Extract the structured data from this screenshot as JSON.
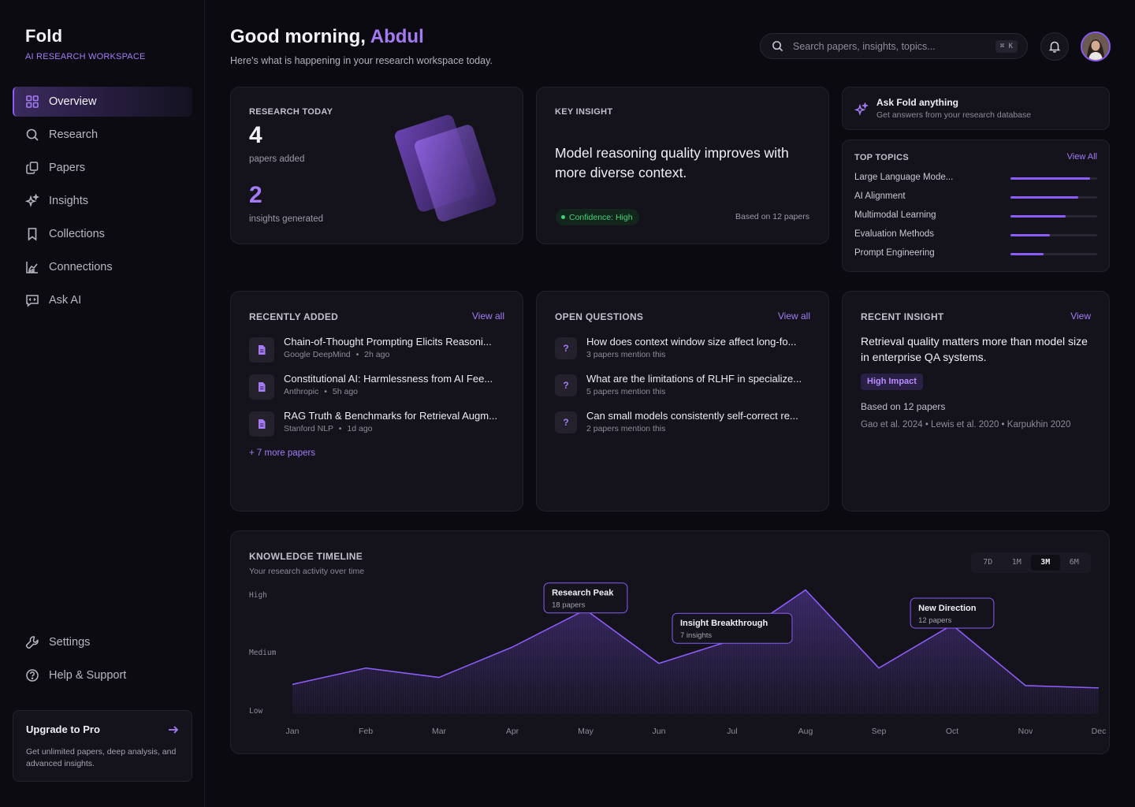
{
  "brand": {
    "name": "Fold",
    "subtitle": "AI RESEARCH WORKSPACE"
  },
  "nav": {
    "items": [
      {
        "label": "Overview",
        "icon": "grid-icon",
        "active": true
      },
      {
        "label": "Research",
        "icon": "search-icon"
      },
      {
        "label": "Papers",
        "icon": "papers-icon"
      },
      {
        "label": "Insights",
        "icon": "sparkle-icon"
      },
      {
        "label": "Collections",
        "icon": "bookmark-icon"
      },
      {
        "label": "Connections",
        "icon": "chart-icon"
      },
      {
        "label": "Ask AI",
        "icon": "chat-icon"
      }
    ],
    "bottom": [
      {
        "label": "Settings",
        "icon": "wrench-icon"
      },
      {
        "label": "Help & Support",
        "icon": "help-icon"
      }
    ]
  },
  "upgrade": {
    "title": "Upgrade to Pro",
    "text": "Get unlimited papers, deep analysis, and advanced insights."
  },
  "header": {
    "greeting": "Good morning,",
    "name": "Abdul",
    "subtitle": "Here's what is happening in your research workspace today.",
    "search_placeholder": "Search papers, insights, topics...",
    "shortcut": "⌘ K"
  },
  "research_today": {
    "label": "RESEARCH TODAY",
    "papers_count": "4",
    "papers_label": "papers added",
    "insights_count": "2",
    "insights_label": "insights generated"
  },
  "key_insight": {
    "label": "KEY INSIGHT",
    "text": "Model reasoning quality improves with more diverse context.",
    "confidence": "Confidence: High",
    "based_on": "Based on 12 papers"
  },
  "ask": {
    "title": "Ask Fold anything",
    "subtitle": "Get answers from your research database"
  },
  "top_topics": {
    "label": "TOP TOPICS",
    "view": "View All",
    "items": [
      {
        "name": "Large Language Mode...",
        "level": 0.92
      },
      {
        "name": "AI Alignment",
        "level": 0.78
      },
      {
        "name": "Multimodal Learning",
        "level": 0.64
      },
      {
        "name": "Evaluation Methods",
        "level": 0.45
      },
      {
        "name": "Prompt Engineering",
        "level": 0.38
      }
    ]
  },
  "recently_added": {
    "label": "RECENTLY ADDED",
    "view": "View all",
    "items": [
      {
        "title": "Chain-of-Thought Prompting Elicits Reasoni...",
        "source": "Google DeepMind",
        "time": "2h ago"
      },
      {
        "title": "Constitutional AI: Harmlessness from AI Fee...",
        "source": "Anthropic",
        "time": "5h ago"
      },
      {
        "title": "RAG Truth & Benchmarks for Retrieval Augm...",
        "source": "Stanford NLP",
        "time": "1d ago"
      }
    ],
    "more": "+ 7 more papers"
  },
  "open_questions": {
    "label": "OPEN QUESTIONS",
    "view": "View all",
    "items": [
      {
        "title": "How does context window size affect long-fo...",
        "sub": "3 papers mention this"
      },
      {
        "title": "What are the limitations of RLHF in specialize...",
        "sub": "5 papers mention this"
      },
      {
        "title": "Can small models consistently self-correct re...",
        "sub": "2 papers mention this"
      }
    ]
  },
  "recent_insight": {
    "label": "RECENT INSIGHT",
    "view": "View",
    "text": "Retrieval quality matters more than model size in enterprise QA systems.",
    "badge": "High Impact",
    "based_on": "Based on 12 papers",
    "citations": "Gao et al. 2024 • Lewis et al. 2020 • Karpukhin 2020"
  },
  "timeline": {
    "label": "KNOWLEDGE TIMELINE",
    "subtitle": "Your research activity over time",
    "ranges": [
      "7D",
      "1M",
      "3M",
      "6M"
    ],
    "active_range": "3M",
    "colors": {
      "line": "#8b5cf6",
      "fill": "#3b2a6b"
    }
  },
  "chart_data": {
    "type": "area",
    "x": [
      "Jan",
      "Feb",
      "Mar",
      "Apr",
      "May",
      "Jun",
      "Jul",
      "Aug",
      "Sep",
      "Oct",
      "Nov",
      "Dec"
    ],
    "y_ticks": [
      "High",
      "Medium",
      "Low"
    ],
    "values": [
      0.22,
      0.36,
      0.28,
      0.54,
      0.86,
      0.4,
      0.6,
      1.03,
      0.36,
      0.73,
      0.21,
      0.19
    ],
    "annotations": [
      {
        "title": "Research Peak",
        "sub": "18 papers",
        "month": "May"
      },
      {
        "title": "Insight Breakthrough",
        "sub": "7 insights",
        "month": "Jul"
      },
      {
        "title": "New Direction",
        "sub": "12 papers",
        "month": "Oct"
      }
    ]
  }
}
